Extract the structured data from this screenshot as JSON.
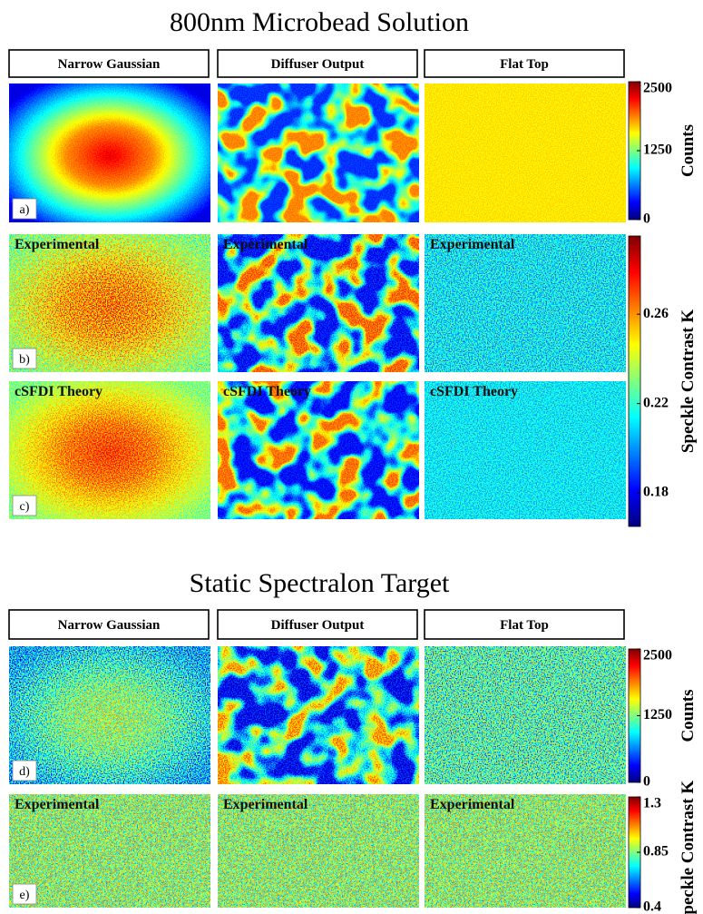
{
  "figure": {
    "sections": [
      {
        "title": "800nm Microbead Solution",
        "columns": [
          "Narrow Gaussian",
          "Diffuser Output",
          "Flat Top"
        ],
        "rows": [
          {
            "label": "a)"
          },
          {
            "label": "b)",
            "panel_title": "Experimental"
          },
          {
            "label": "c)",
            "panel_title": "cSFDI Theory"
          }
        ],
        "colorbars": [
          {
            "label": "Counts",
            "range": [
              0,
              2500
            ],
            "ticks": [
              0,
              1250,
              2500
            ]
          },
          {
            "label": "Speckle Contrast K",
            "range": [
              0.165,
              0.295
            ],
            "ticks": [
              0.18,
              0.22,
              0.26
            ]
          }
        ]
      },
      {
        "title": "Static Spectralon Target",
        "columns": [
          "Narrow Gaussian",
          "Diffuser Output",
          "Flat Top"
        ],
        "rows": [
          {
            "label": "d)"
          },
          {
            "label": "e)",
            "panel_title": "Experimental"
          }
        ],
        "colorbars": [
          {
            "label": "Counts",
            "range": [
              0,
              2500
            ],
            "ticks": [
              0,
              1250,
              2500
            ]
          },
          {
            "label": "Speckle Contrast K",
            "range": [
              0.4,
              1.3
            ],
            "ticks": [
              0.4,
              0.85,
              1.3
            ]
          }
        ]
      }
    ]
  }
}
